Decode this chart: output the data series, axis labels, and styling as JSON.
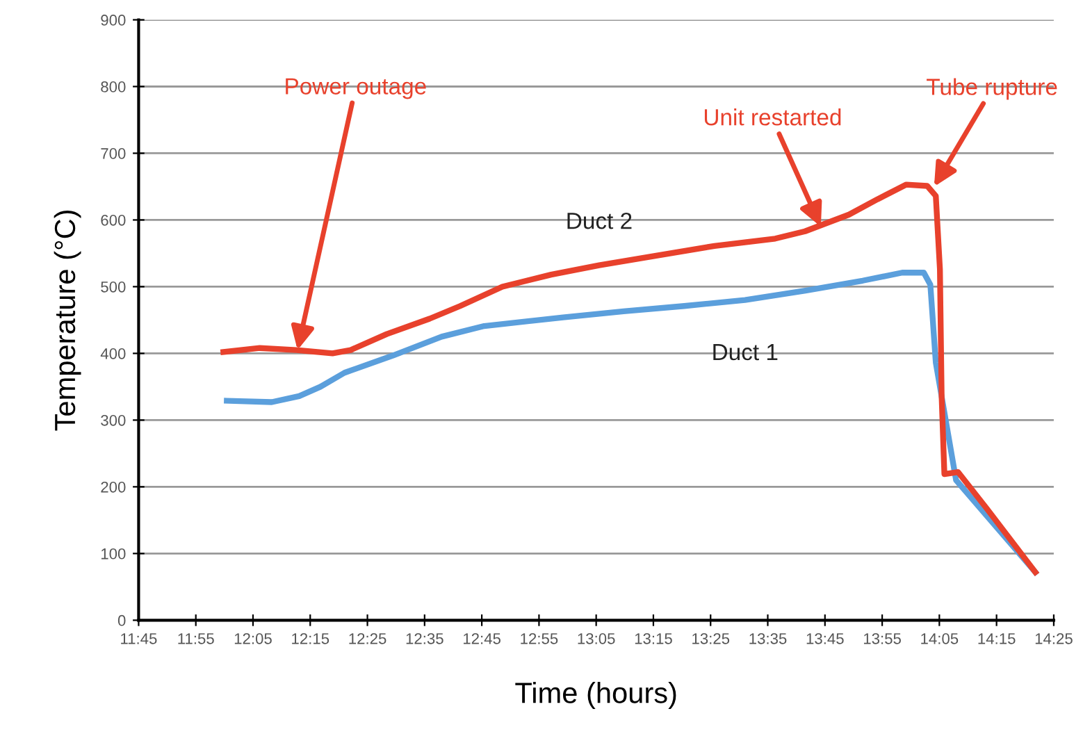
{
  "chart_data": {
    "type": "line",
    "xlabel": "Time (hours)",
    "ylabel": "Temperature (°C)",
    "xlim": [
      11.75,
      14.4167
    ],
    "ylim": [
      0,
      900
    ],
    "xticks": [
      {
        "value": 11.75,
        "label": "11:45"
      },
      {
        "value": 11.9167,
        "label": "11:55"
      },
      {
        "value": 12.0833,
        "label": "12:05"
      },
      {
        "value": 12.25,
        "label": "12:15"
      },
      {
        "value": 12.4167,
        "label": "12:25"
      },
      {
        "value": 12.5833,
        "label": "12:35"
      },
      {
        "value": 12.75,
        "label": "12:45"
      },
      {
        "value": 12.9167,
        "label": "12:55"
      },
      {
        "value": 13.0833,
        "label": "13:05"
      },
      {
        "value": 13.25,
        "label": "13:15"
      },
      {
        "value": 13.4167,
        "label": "13:25"
      },
      {
        "value": 13.5833,
        "label": "13:35"
      },
      {
        "value": 13.75,
        "label": "13:45"
      },
      {
        "value": 13.9167,
        "label": "13:55"
      },
      {
        "value": 14.0833,
        "label": "14:05"
      },
      {
        "value": 14.25,
        "label": "14:15"
      },
      {
        "value": 14.4167,
        "label": "14:25"
      }
    ],
    "yticks": [
      0,
      100,
      200,
      300,
      400,
      500,
      600,
      700,
      800,
      900
    ],
    "grid": "y",
    "legend": false,
    "marker": "none",
    "line_style": "solid",
    "series": [
      {
        "name": "Duct 1",
        "color": "#5b9fdc",
        "x": [
          12.007,
          12.138,
          12.218,
          12.28,
          12.35,
          12.492,
          12.633,
          12.757,
          12.987,
          13.163,
          13.34,
          13.517,
          13.693,
          13.86,
          13.975,
          14.038,
          14.057,
          14.073,
          14.132,
          14.363
        ],
        "values": [
          329,
          327,
          336,
          350,
          371,
          397,
          425,
          441,
          454,
          463,
          471,
          480,
          494,
          509,
          521,
          521,
          503,
          386,
          210,
          72
        ]
      },
      {
        "name": "Duct 2",
        "color": "#e8412c",
        "x": [
          11.997,
          12.103,
          12.21,
          12.315,
          12.368,
          12.473,
          12.598,
          12.687,
          12.81,
          12.952,
          13.092,
          13.252,
          13.428,
          13.605,
          13.692,
          13.82,
          13.903,
          13.987,
          14.048,
          14.073,
          14.085,
          14.09,
          14.098,
          14.138,
          14.222,
          14.363
        ],
        "values": [
          402,
          408,
          405,
          400,
          405,
          429,
          452,
          471,
          500,
          518,
          532,
          546,
          561,
          572,
          583,
          608,
          631,
          653,
          651,
          636,
          526,
          335,
          219,
          222,
          167,
          72
        ]
      }
    ],
    "annotations": [
      {
        "text": "Power outage",
        "x": 12.213,
        "y": 405
      },
      {
        "text": "Unit restarted",
        "x": 13.738,
        "y": 590
      },
      {
        "text": "Tube rupture",
        "x": 14.068,
        "y": 650
      }
    ]
  }
}
